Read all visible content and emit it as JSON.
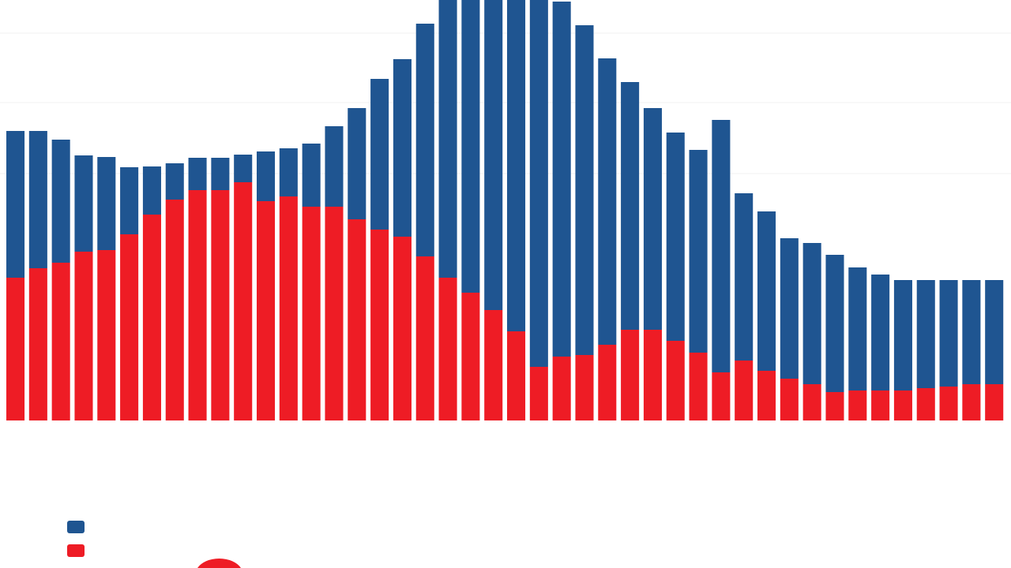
{
  "chart_data": {
    "type": "stacked_bar",
    "ylim": [
      0,
      106.6
    ],
    "series": [
      {
        "color": "#ee1c25",
        "values": [
          36.2,
          38.6,
          40,
          42.8,
          43.2,
          47.2,
          52.2,
          56,
          58.4,
          58.4,
          60.4,
          55.6,
          56.8,
          54.2,
          54.2,
          51,
          48.4,
          46.6,
          41.6,
          36.2,
          32.4,
          28,
          22.6,
          13.6,
          16.2,
          16.6,
          19.2,
          23,
          23,
          20.2,
          17.2,
          12.2,
          15.2,
          12.6,
          10.6,
          9.2,
          7.2,
          7.6,
          7.6,
          7.6,
          8.2,
          8.6,
          9.2,
          9.2
        ]
      },
      {
        "color": "#1f5591",
        "values": [
          37.2,
          34.8,
          31.2,
          24.4,
          23.6,
          17,
          12.2,
          9.2,
          8.2,
          8.2,
          7,
          12.6,
          12.2,
          16,
          20.4,
          28.2,
          38.2,
          45,
          59,
          70.4,
          74.2,
          78.6,
          84,
          93,
          90,
          83.6,
          72.6,
          62.8,
          56.2,
          52.8,
          51.4,
          64,
          42.4,
          40.4,
          35.6,
          35.8,
          34.8,
          31.2,
          29.4,
          28,
          27.4,
          27,
          26.4,
          26.4
        ]
      }
    ]
  }
}
